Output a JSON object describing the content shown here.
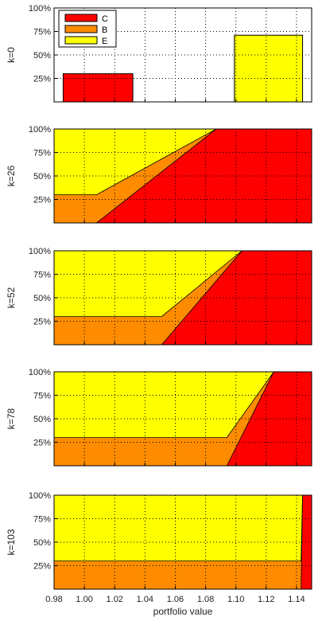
{
  "chart_data": {
    "type": "area",
    "stacking": "100% stacked (percent of portfolio)",
    "xlabel": "portfolio value",
    "x_ticks": [
      0.98,
      1.0,
      1.02,
      1.04,
      1.06,
      1.08,
      1.1,
      1.12,
      1.14
    ],
    "x_tick_labels": [
      "0.98",
      "1.00",
      "1.02",
      "1.04",
      "1.06",
      "1.08",
      "1.10",
      "1.12",
      "1.14"
    ],
    "xlim": [
      0.98,
      1.15
    ],
    "y_ticks": [
      25,
      50,
      75,
      100
    ],
    "y_tick_labels": [
      "25%",
      "50%",
      "75%",
      "100%"
    ],
    "ylim": [
      0,
      100
    ],
    "grid": true,
    "legend": {
      "placement": "top-left",
      "entries": [
        {
          "name": "C",
          "color": "#ff0000"
        },
        {
          "name": "B",
          "color": "#ff8c00"
        },
        {
          "name": "E",
          "color": "#ffff00"
        }
      ]
    },
    "panels": [
      {
        "ylabel": "k=0",
        "kind": "bar",
        "bars": [
          {
            "series": "C",
            "x_range": [
              0.986,
              1.032
            ],
            "value": 30
          },
          {
            "series": "E",
            "x_range": [
              1.099,
              1.144
            ],
            "value": 71
          }
        ]
      },
      {
        "ylabel": "k=26",
        "kind": "area",
        "x": [
          0.98,
          1.007,
          1.008,
          1.087,
          1.088,
          1.15
        ],
        "C": [
          0,
          0,
          0,
          100,
          100,
          100
        ],
        "B": [
          30,
          30,
          30,
          0,
          0,
          0
        ],
        "E": [
          70,
          70,
          70,
          0,
          0,
          0
        ],
        "C_line": [
          0,
          0,
          0,
          100,
          100,
          100
        ],
        "CB_line": [
          30,
          30,
          30,
          100,
          100,
          100
        ]
      },
      {
        "ylabel": "k=52",
        "kind": "area",
        "x": [
          0.98,
          1.05,
          1.051,
          1.104,
          1.105,
          1.15
        ],
        "C": [
          0,
          0,
          0,
          100,
          100,
          100
        ],
        "B": [
          30,
          30,
          30,
          0,
          0,
          0
        ],
        "E": [
          70,
          70,
          70,
          0,
          0,
          0
        ],
        "C_line": [
          0,
          0,
          0,
          100,
          100,
          100
        ],
        "CB_line": [
          30,
          30,
          30,
          100,
          100,
          100
        ]
      },
      {
        "ylabel": "k=78",
        "kind": "area",
        "x": [
          0.98,
          1.093,
          1.094,
          1.125,
          1.126,
          1.15
        ],
        "C": [
          0,
          0,
          0,
          100,
          100,
          100
        ],
        "B": [
          30,
          30,
          30,
          0,
          0,
          0
        ],
        "E": [
          70,
          70,
          70,
          0,
          0,
          0
        ],
        "C_line": [
          0,
          0,
          0,
          100,
          100,
          100
        ],
        "CB_line": [
          30,
          30,
          30,
          100,
          100,
          100
        ]
      },
      {
        "ylabel": "k=103",
        "kind": "area",
        "x": [
          0.98,
          1.142,
          1.143,
          1.144,
          1.145,
          1.15
        ],
        "C": [
          0,
          0,
          0,
          100,
          100,
          100
        ],
        "B": [
          30,
          30,
          30,
          0,
          0,
          0
        ],
        "E": [
          70,
          70,
          70,
          0,
          0,
          0
        ],
        "C_line": [
          0,
          0,
          0,
          100,
          100,
          100
        ],
        "CB_line": [
          30,
          30,
          30,
          100,
          100,
          100
        ]
      }
    ]
  }
}
